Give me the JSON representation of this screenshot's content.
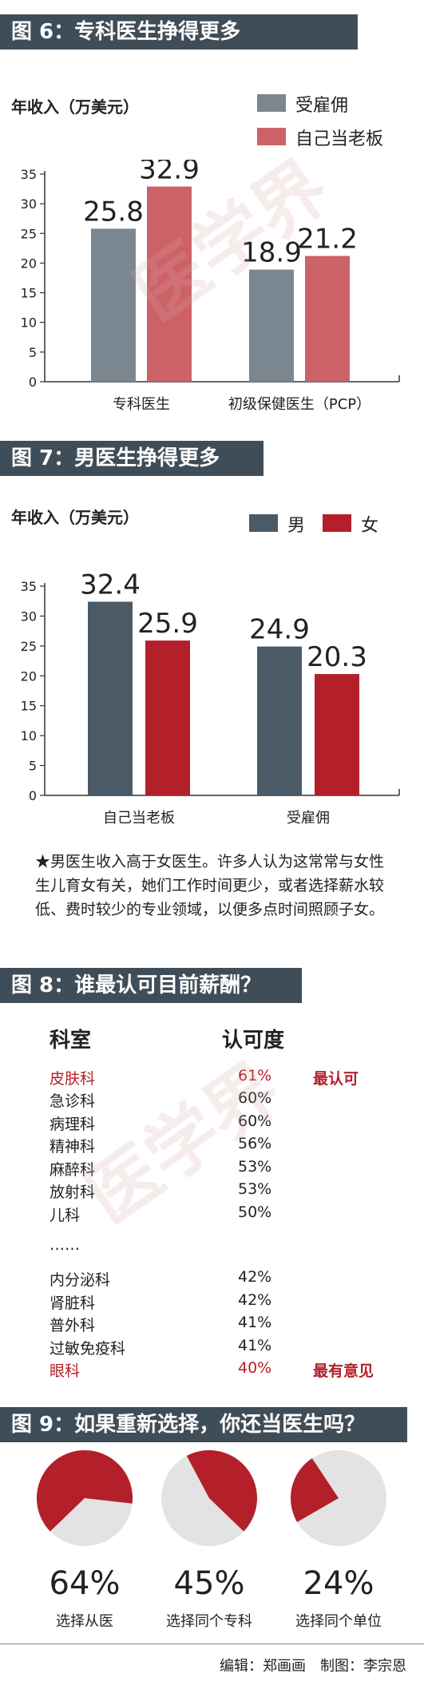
{
  "sections": {
    "fig6": {
      "header": "图 6：专科医生挣得更多"
    },
    "fig7": {
      "header": "图 7：男医生挣得更多"
    },
    "fig8": {
      "header": "图 8：谁最认可目前薪酬？"
    },
    "fig9": {
      "header": "图 9：如果重新选择，你还当医生吗？"
    }
  },
  "chart_data": [
    {
      "type": "bar",
      "ylabel": "年收入（万美元）",
      "ylim": [
        0,
        35
      ],
      "yticks": [
        0,
        5,
        10,
        15,
        20,
        25,
        30,
        35
      ],
      "categories": [
        "专科医生",
        "初级保健医生（PCP）"
      ],
      "series": [
        {
          "name": "受雇佣",
          "values": [
            25.8,
            18.9
          ],
          "color": "#7a8791"
        },
        {
          "name": "自己当老板",
          "values": [
            32.9,
            21.2
          ],
          "color": "#cc6167"
        }
      ]
    },
    {
      "type": "bar",
      "ylabel": "年收入（万美元）",
      "ylim": [
        0,
        35
      ],
      "yticks": [
        0,
        5,
        10,
        15,
        20,
        25,
        30,
        35
      ],
      "categories": [
        "自己当老板",
        "受雇佣"
      ],
      "series": [
        {
          "name": "男",
          "values": [
            32.4,
            24.9
          ],
          "color": "#4a5a67"
        },
        {
          "name": "女",
          "values": [
            25.9,
            20.3
          ],
          "color": "#b3202a"
        }
      ]
    },
    {
      "type": "table",
      "columns": [
        "科室",
        "认可度"
      ],
      "rows": [
        {
          "dept": "皮肤科",
          "pct": "61%",
          "tag": "最认可",
          "highlight": true
        },
        {
          "dept": "急诊科",
          "pct": "60%",
          "tag": "",
          "highlight": false
        },
        {
          "dept": "病理科",
          "pct": "60%",
          "tag": "",
          "highlight": false
        },
        {
          "dept": "精神科",
          "pct": "56%",
          "tag": "",
          "highlight": false
        },
        {
          "dept": "麻醉科",
          "pct": "53%",
          "tag": "",
          "highlight": false
        },
        {
          "dept": "放射科",
          "pct": "53%",
          "tag": "",
          "highlight": false
        },
        {
          "dept": "儿科",
          "pct": "50%",
          "tag": "",
          "highlight": false
        },
        {
          "dept": "……",
          "pct": "",
          "tag": "",
          "highlight": false
        },
        {
          "dept": "内分泌科",
          "pct": "42%",
          "tag": "",
          "highlight": false
        },
        {
          "dept": "肾脏科",
          "pct": "42%",
          "tag": "",
          "highlight": false
        },
        {
          "dept": "普外科",
          "pct": "41%",
          "tag": "",
          "highlight": false
        },
        {
          "dept": "过敏免疫科",
          "pct": "41%",
          "tag": "",
          "highlight": false
        },
        {
          "dept": "眼科",
          "pct": "40%",
          "tag": "最有意见",
          "highlight": true
        }
      ]
    },
    {
      "type": "pie",
      "slices": [
        {
          "label": "选择从医",
          "value": 64,
          "display": "64%"
        },
        {
          "label": "选择同个专科",
          "value": 45,
          "display": "45%"
        },
        {
          "label": "选择同个单位",
          "value": 24,
          "display": "24%"
        }
      ],
      "color": "#b3202a",
      "rest_color": "#e3e3e3"
    }
  ],
  "note": "★男医生收入高于女医生。许多人认为这常常与女性生儿育女有关，她们工作时间更少，或者选择薪水较低、费时较少的专业领域，以便多点时间照顾子女。",
  "footer": "编辑：郑画画　制图：李宗恩",
  "watermark": "医学界"
}
